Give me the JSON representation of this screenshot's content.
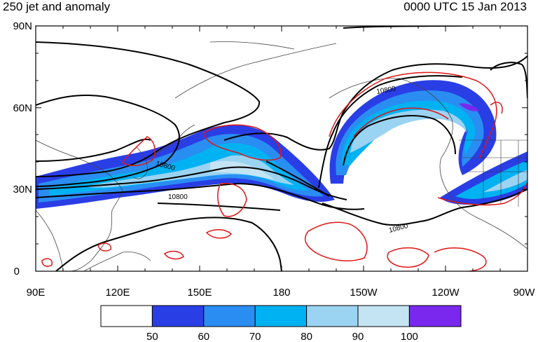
{
  "header": {
    "title": "250 jet and anomaly",
    "valid_time": "0000 UTC 15 Jan 2013"
  },
  "axes": {
    "lat_labels": [
      "90N",
      "60N",
      "30N",
      "0"
    ],
    "lon_labels": [
      "90E",
      "120E",
      "150E",
      "180",
      "150W",
      "120W",
      "90W"
    ]
  },
  "contour_labels": [
    "10800",
    "10800",
    "10800",
    "10800"
  ],
  "colorbar": {
    "labels": [
      "50",
      "60",
      "70",
      "80",
      "90",
      "100"
    ],
    "colors": [
      "#ffffff",
      "#2a3ee6",
      "#2a8df2",
      "#00b2f2",
      "#9bd3f2",
      "#c4e4f4",
      "#7a28ee"
    ]
  },
  "colors": {
    "anomaly_contour": "#e01515",
    "height_contour": "#000000",
    "coastline": "#444444"
  }
}
